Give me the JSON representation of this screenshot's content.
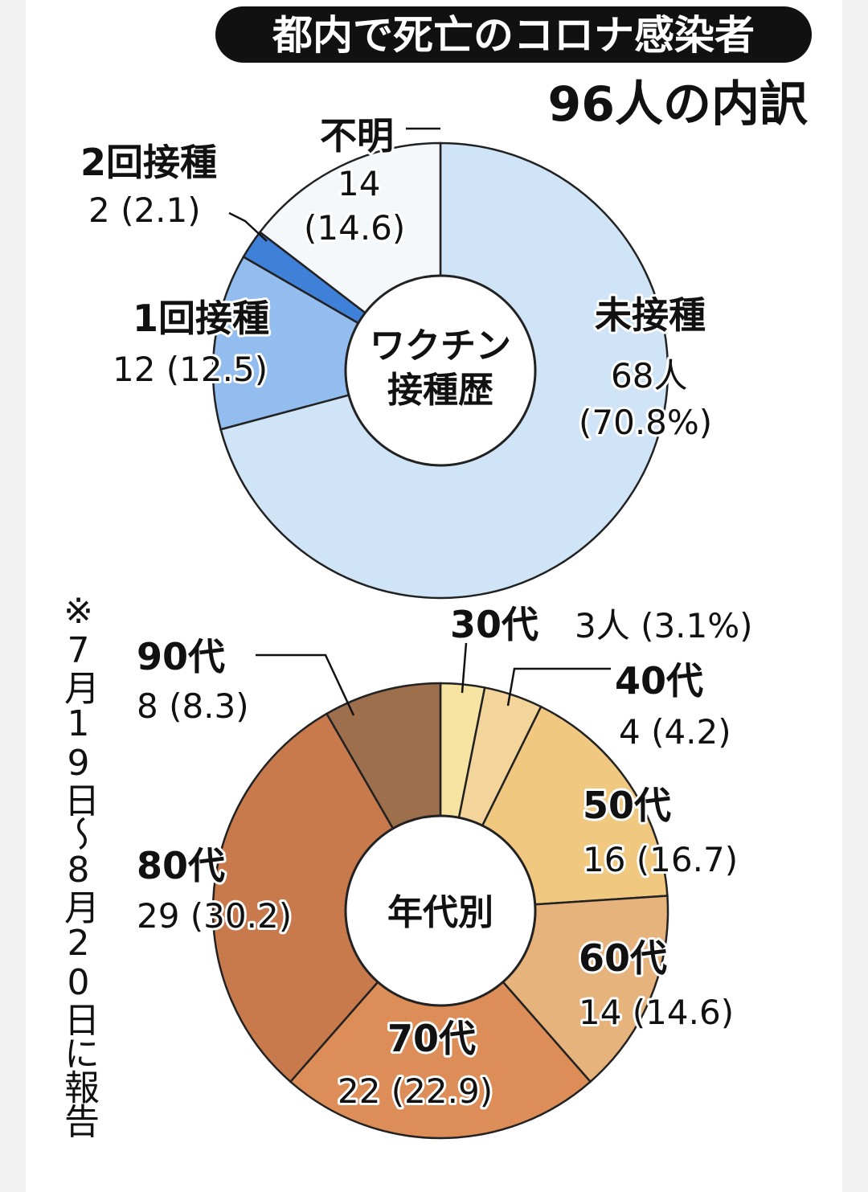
{
  "title": "都内で死亡のコロナ感染者",
  "subtitle": "96人の内訳",
  "note": "※7月19日〜8月20日に報告",
  "chart_data": [
    {
      "type": "pie",
      "title": "ワクチン接種歴",
      "center_label": [
        "ワクチン",
        "接種歴"
      ],
      "total": 96,
      "slices": [
        {
          "name": "未接種",
          "value": 68,
          "percent": 70.8,
          "value_label": "68人",
          "percent_label": "(70.8%)",
          "color": "#cfe5f7"
        },
        {
          "name": "1回接種",
          "value": 12,
          "percent": 12.5,
          "value_label": "12 (12.5)",
          "color": "#93bdef"
        },
        {
          "name": "2回接種",
          "value": 2,
          "percent": 2.1,
          "value_label": "2 (2.1)",
          "color": "#3f80d8"
        },
        {
          "name": "不明",
          "value": 14,
          "percent": 14.6,
          "value_label": "14",
          "percent_label": "(14.6)",
          "color": "#f5f8fb"
        }
      ]
    },
    {
      "type": "pie",
      "title": "年代別",
      "center_label": [
        "年代別"
      ],
      "total": 96,
      "slices": [
        {
          "name": "30代",
          "value": 3,
          "percent": 3.1,
          "value_label": "3人 (3.1%)",
          "color": "#f8e4a2"
        },
        {
          "name": "40代",
          "value": 4,
          "percent": 4.2,
          "value_label": "4 (4.2)",
          "color": "#f3d49a"
        },
        {
          "name": "50代",
          "value": 16,
          "percent": 16.7,
          "value_label": "16 (16.7)",
          "color": "#f0c880"
        },
        {
          "name": "60代",
          "value": 14,
          "percent": 14.6,
          "value_label": "14 (14.6)",
          "color": "#e6b37c"
        },
        {
          "name": "70代",
          "value": 22,
          "percent": 22.9,
          "value_label": "22 (22.9)",
          "color": "#dd8d57"
        },
        {
          "name": "80代",
          "value": 29,
          "percent": 30.2,
          "value_label": "29 (30.2)",
          "color": "#c97a4d"
        },
        {
          "name": "90代",
          "value": 8,
          "percent": 8.3,
          "value_label": "8 (8.3)",
          "color": "#9d6f4d"
        }
      ]
    }
  ]
}
